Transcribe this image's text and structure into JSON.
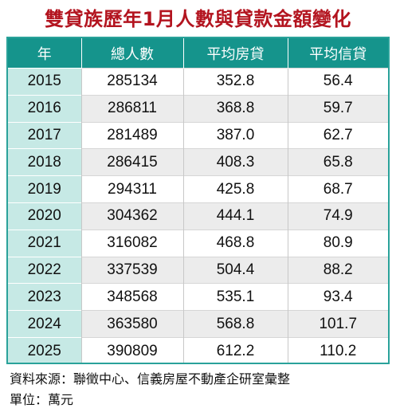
{
  "title": "雙貸族歷年1月人數與貸款金額變化",
  "table": {
    "headers": [
      "年",
      "總人數",
      "平均房貸",
      "平均信貸"
    ],
    "rows": [
      {
        "year": "2015",
        "total": "285134",
        "house": "352.8",
        "credit": "56.4"
      },
      {
        "year": "2016",
        "total": "286811",
        "house": "368.8",
        "credit": "59.7"
      },
      {
        "year": "2017",
        "total": "281489",
        "house": "387.0",
        "credit": "62.7"
      },
      {
        "year": "2018",
        "total": "286415",
        "house": "408.3",
        "credit": "65.8"
      },
      {
        "year": "2019",
        "total": "294311",
        "house": "425.8",
        "credit": "68.7"
      },
      {
        "year": "2020",
        "total": "304362",
        "house": "444.1",
        "credit": "74.9"
      },
      {
        "year": "2021",
        "total": "316082",
        "house": "468.8",
        "credit": "80.9"
      },
      {
        "year": "2022",
        "total": "337539",
        "house": "504.4",
        "credit": "88.2"
      },
      {
        "year": "2023",
        "total": "348568",
        "house": "535.1",
        "credit": "93.4"
      },
      {
        "year": "2024",
        "total": "363580",
        "house": "568.8",
        "credit": "101.7"
      },
      {
        "year": "2025",
        "total": "390809",
        "house": "612.2",
        "credit": "110.2"
      }
    ]
  },
  "footer": {
    "source": "資料來源：聯徵中心、信義房屋不動產企研室彙整",
    "unit": "單位：萬元"
  },
  "colors": {
    "title": "#b3141f",
    "header_bg": "#15948c",
    "year_col_bg": "#c6e9e5",
    "alt_row_bg": "#ececec",
    "border": "#2aa29a"
  }
}
